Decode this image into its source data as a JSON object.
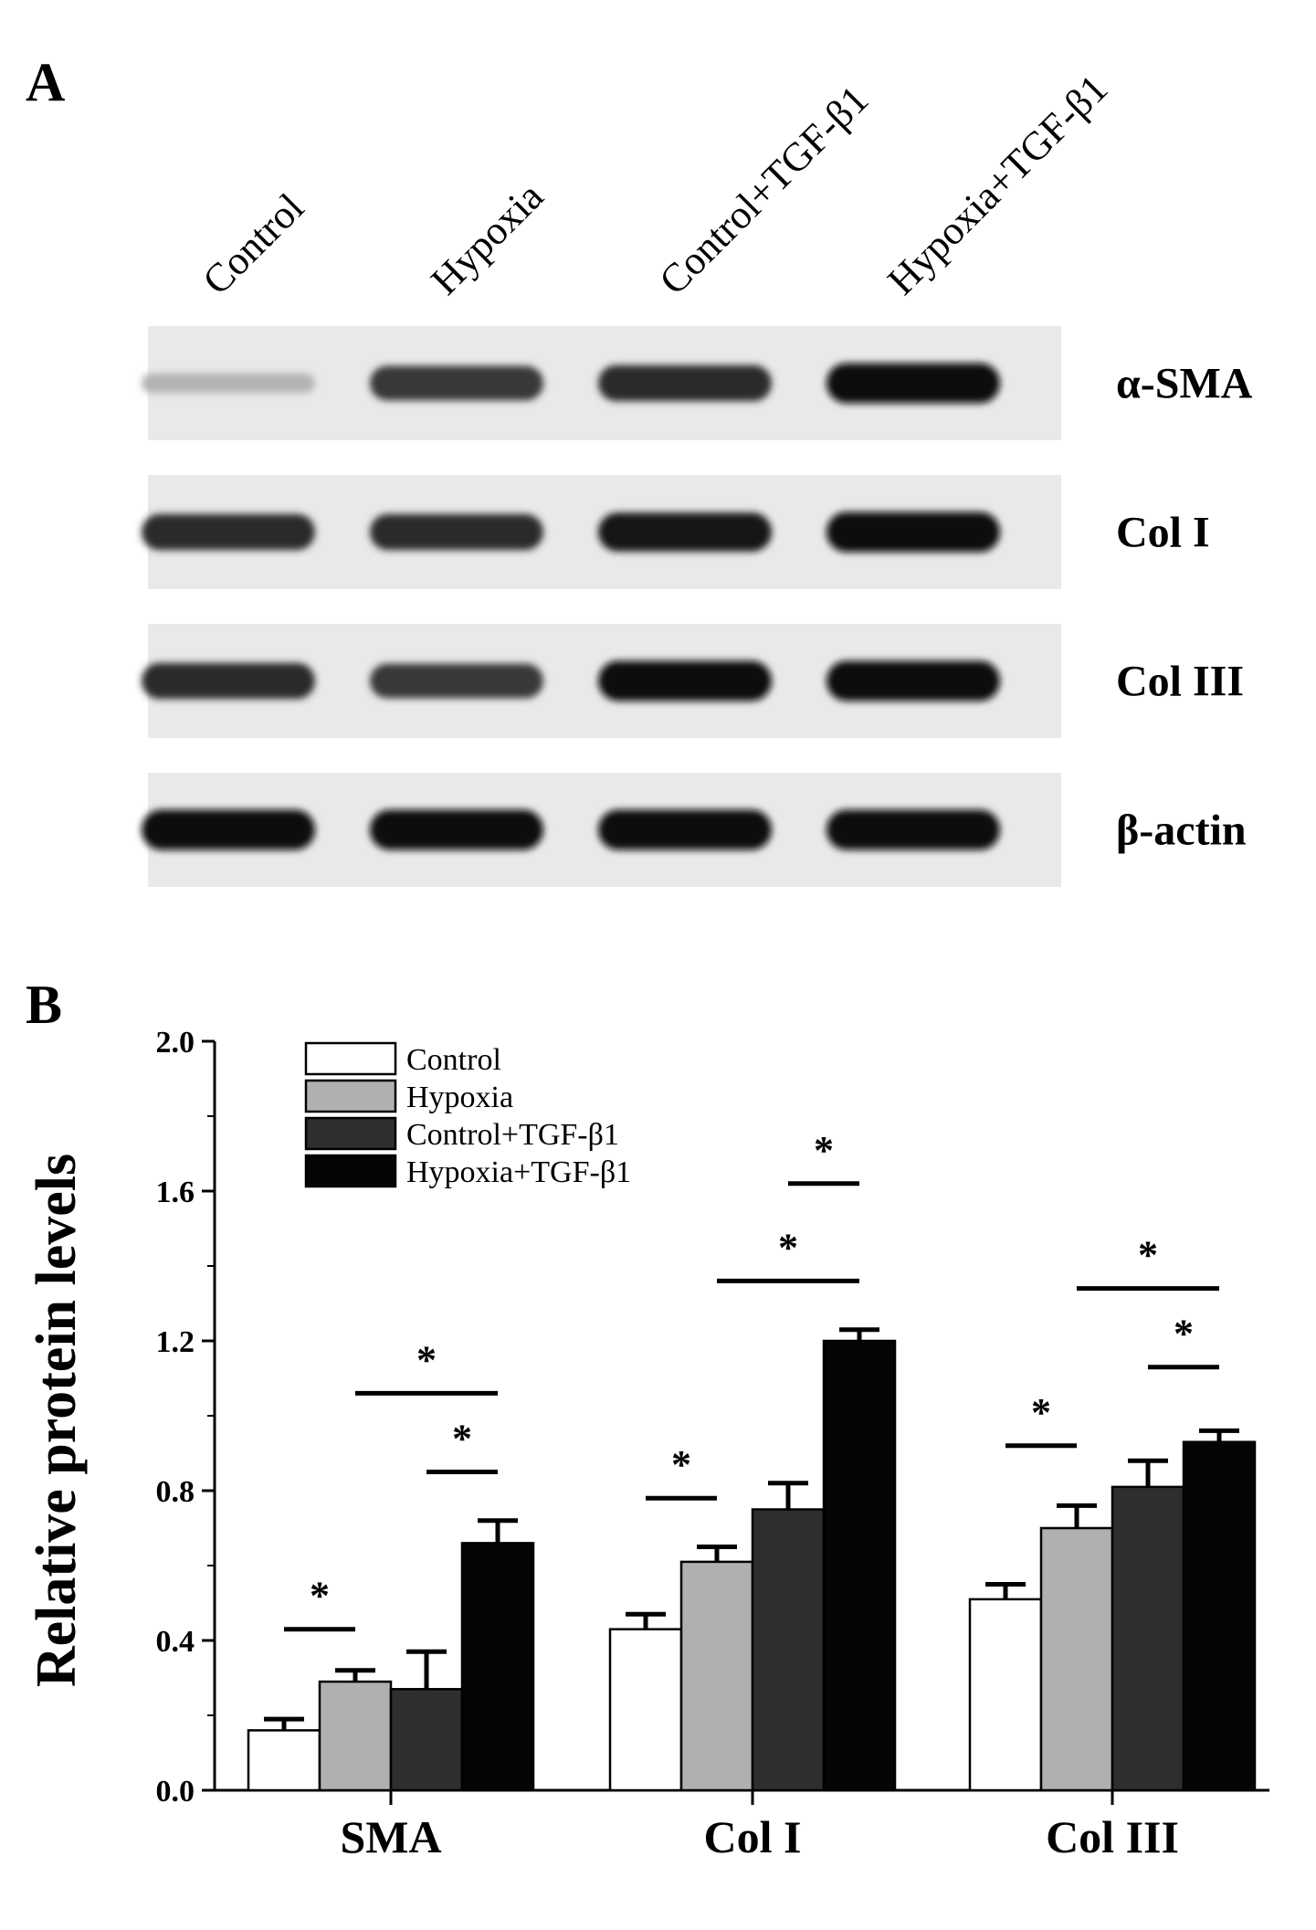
{
  "panel_a": {
    "label": "A",
    "lanes": [
      "Control",
      "Hypoxia",
      "Control+TGF-β1",
      "Hypoxia+TGF-β1"
    ],
    "blots": [
      {
        "protein": "α-SMA",
        "band_intensity": [
          0.25,
          0.8,
          0.85,
          1.0
        ]
      },
      {
        "protein": "Col I",
        "band_intensity": [
          0.85,
          0.85,
          0.95,
          1.0
        ]
      },
      {
        "protein": "Col III",
        "band_intensity": [
          0.85,
          0.8,
          1.0,
          1.0
        ]
      },
      {
        "protein": "β-actin",
        "band_intensity": [
          1.0,
          1.0,
          1.0,
          1.0
        ]
      }
    ]
  },
  "panel_b": {
    "label": "B"
  },
  "colors": {
    "Control": "#ffffff",
    "Hypoxia": "#b0b0b0",
    "Control+TGF-β1": "#2e2e2e",
    "Hypoxia+TGF-β1": "#050505"
  },
  "chart_data": {
    "type": "bar",
    "ylabel": "Relative protein levels",
    "xlabel": "",
    "ylim": [
      0.0,
      2.0
    ],
    "yticks": [
      "0.0",
      "0.4",
      "0.8",
      "1.2",
      "1.6",
      "2.0"
    ],
    "categories": [
      "SMA",
      "Col I",
      "Col III"
    ],
    "legend_position": "top-left",
    "grid": false,
    "series": [
      {
        "name": "Control",
        "values": [
          0.16,
          0.43,
          0.51
        ],
        "errors": [
          0.03,
          0.04,
          0.04
        ]
      },
      {
        "name": "Hypoxia",
        "values": [
          0.29,
          0.61,
          0.7
        ],
        "errors": [
          0.03,
          0.04,
          0.06
        ]
      },
      {
        "name": "Control+TGF-β1",
        "values": [
          0.27,
          0.75,
          0.81
        ],
        "errors": [
          0.1,
          0.07,
          0.07
        ]
      },
      {
        "name": "Hypoxia+TGF-β1",
        "values": [
          0.66,
          1.2,
          0.93
        ],
        "errors": [
          0.06,
          0.03,
          0.03
        ]
      }
    ],
    "significance": [
      {
        "category": "SMA",
        "from_series": 0,
        "to_series": 1,
        "level": 0.43,
        "mark": "*"
      },
      {
        "category": "SMA",
        "from_series": 2,
        "to_series": 3,
        "level": 0.85,
        "mark": "*"
      },
      {
        "category": "SMA",
        "from_series": 1,
        "to_series": 3,
        "level": 1.06,
        "mark": "*"
      },
      {
        "category": "Col I",
        "from_series": 0,
        "to_series": 1,
        "level": 0.78,
        "mark": "*"
      },
      {
        "category": "Col I",
        "from_series": 1,
        "to_series": 3,
        "level": 1.36,
        "mark": "*"
      },
      {
        "category": "Col I",
        "from_series": 2,
        "to_series": 3,
        "level": 1.62,
        "mark": "*"
      },
      {
        "category": "Col III",
        "from_series": 0,
        "to_series": 1,
        "level": 0.92,
        "mark": "*"
      },
      {
        "category": "Col III",
        "from_series": 2,
        "to_series": 3,
        "level": 1.13,
        "mark": "*"
      },
      {
        "category": "Col III",
        "from_series": 1,
        "to_series": 3,
        "level": 1.34,
        "mark": "*"
      }
    ]
  }
}
